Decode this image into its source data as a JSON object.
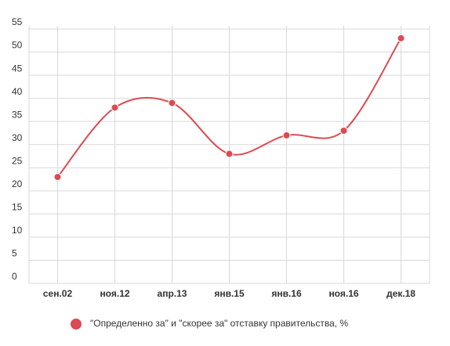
{
  "chart_data": {
    "type": "line",
    "categories": [
      "сен.02",
      "ноя.12",
      "апр.13",
      "янв.15",
      "янв.16",
      "ноя.16",
      "дек.18"
    ],
    "series": [
      {
        "name": "\"Определенно за\" и \"скорее за\" отставку правительства, %",
        "color": "#dc4a53",
        "values": [
          23,
          38,
          39,
          28,
          32,
          33,
          53
        ]
      }
    ],
    "ylim": [
      0,
      55
    ],
    "yticks": [
      0,
      5,
      10,
      15,
      20,
      25,
      30,
      35,
      40,
      45,
      50,
      55
    ],
    "grid": true,
    "smooth": true
  }
}
